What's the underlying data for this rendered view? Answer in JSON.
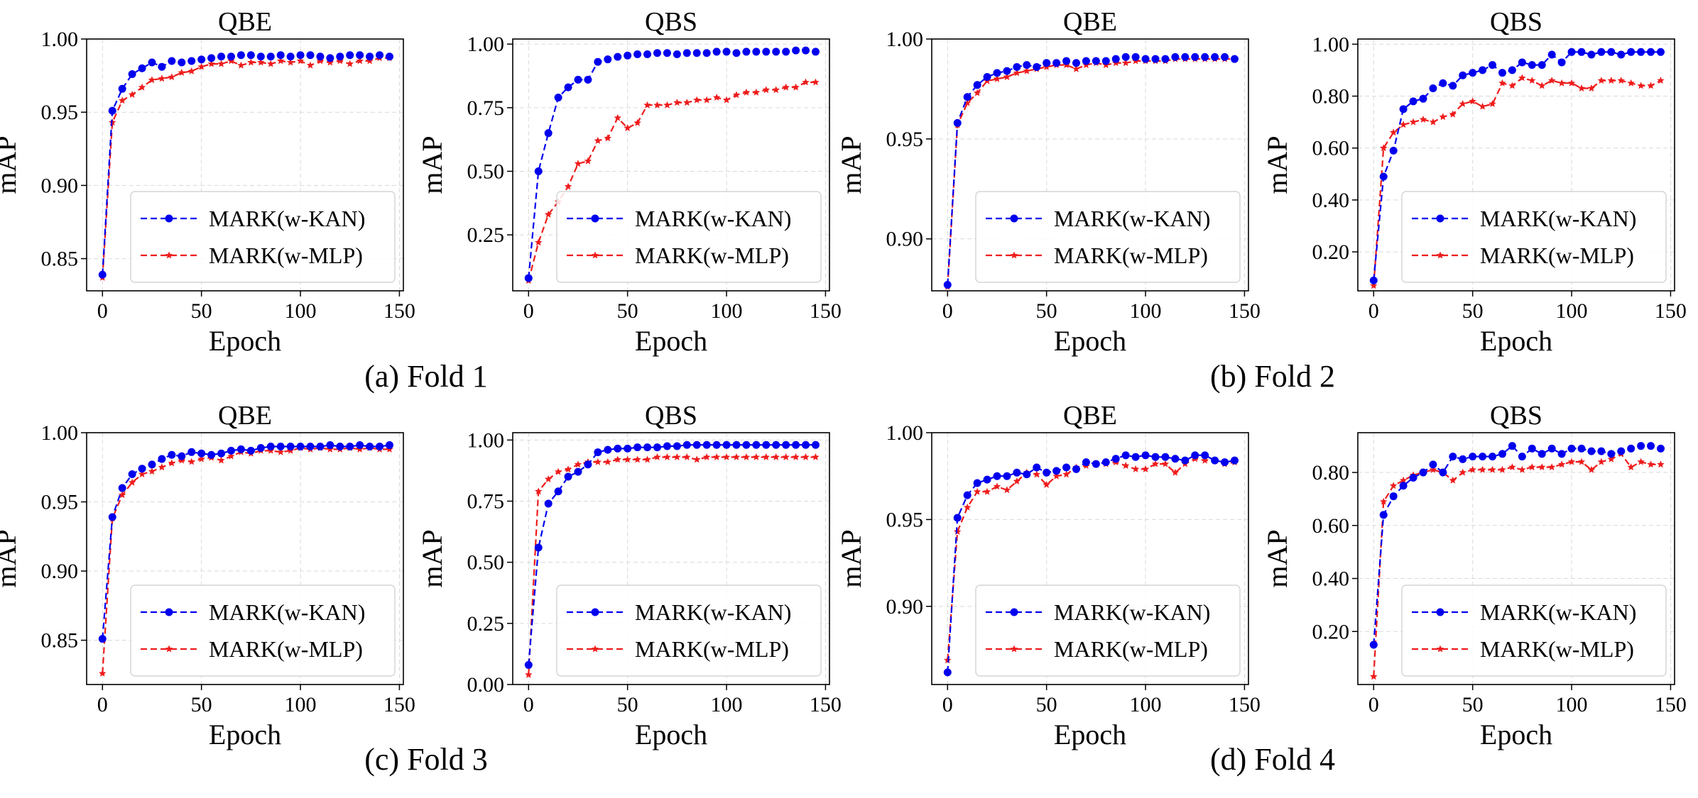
{
  "colors": {
    "kan": "#0000ee",
    "mlp": "#ee1c1c",
    "grid": "#d9d9d9",
    "frame": "#000000"
  },
  "legend": {
    "kan_label": "MARK(w-KAN)",
    "mlp_label": "MARK(w-MLP)",
    "placement": "lower-right"
  },
  "figure": {
    "groups": [
      {
        "caption": "(a) Fold 1"
      },
      {
        "caption": "(b) Fold 2"
      },
      {
        "caption": "(c) Fold 3"
      },
      {
        "caption": "(d) Fold 4"
      }
    ]
  },
  "chart_data": [
    {
      "type": "line",
      "group": 0,
      "title": "QBE",
      "xlabel": "Epoch",
      "ylabel": "mAP",
      "xlim": [
        -8,
        152
      ],
      "ylim": [
        0.828,
        1.0
      ],
      "xticks": [
        0,
        50,
        100,
        150
      ],
      "xtick_labels": [
        "0",
        "50",
        "100",
        "150"
      ],
      "yticks": [
        0.85,
        0.9,
        0.95,
        1.0
      ],
      "ytick_labels": [
        "0.85",
        "0.90",
        "0.95",
        "1.00"
      ],
      "grid": true,
      "legend": "lower-right",
      "x": [
        0,
        5,
        10,
        15,
        20,
        25,
        30,
        35,
        40,
        45,
        50,
        55,
        60,
        65,
        70,
        75,
        80,
        85,
        90,
        95,
        100,
        105,
        110,
        115,
        120,
        125,
        130,
        135,
        140,
        145
      ],
      "series": [
        {
          "name": "MARK(w-KAN)",
          "values": [
            0.839,
            0.951,
            0.966,
            0.976,
            0.98,
            0.984,
            0.981,
            0.985,
            0.984,
            0.985,
            0.986,
            0.987,
            0.988,
            0.988,
            0.989,
            0.989,
            0.988,
            0.988,
            0.989,
            0.988,
            0.989,
            0.989,
            0.988,
            0.987,
            0.988,
            0.989,
            0.989,
            0.988,
            0.989,
            0.988
          ]
        },
        {
          "name": "MARK(w-MLP)",
          "values": [
            0.837,
            0.943,
            0.958,
            0.962,
            0.967,
            0.972,
            0.973,
            0.974,
            0.977,
            0.978,
            0.981,
            0.983,
            0.983,
            0.985,
            0.982,
            0.984,
            0.984,
            0.983,
            0.985,
            0.984,
            0.985,
            0.982,
            0.985,
            0.984,
            0.985,
            0.983,
            0.985,
            0.985,
            0.987,
            0.987
          ]
        }
      ]
    },
    {
      "type": "line",
      "group": 0,
      "title": "QBS",
      "xlabel": "Epoch",
      "ylabel": "mAP",
      "xlim": [
        -8,
        152
      ],
      "ylim": [
        0.03,
        1.02
      ],
      "xticks": [
        0,
        50,
        100,
        150
      ],
      "xtick_labels": [
        "0",
        "50",
        "100",
        "150"
      ],
      "yticks": [
        0.25,
        0.5,
        0.75,
        1.0
      ],
      "ytick_labels": [
        "0.25",
        "0.50",
        "0.75",
        "1.00"
      ],
      "grid": true,
      "legend": "lower-right",
      "x": [
        0,
        5,
        10,
        15,
        20,
        25,
        30,
        35,
        40,
        45,
        50,
        55,
        60,
        65,
        70,
        75,
        80,
        85,
        90,
        95,
        100,
        105,
        110,
        115,
        120,
        125,
        130,
        135,
        140,
        145
      ],
      "series": [
        {
          "name": "MARK(w-KAN)",
          "values": [
            0.08,
            0.5,
            0.65,
            0.79,
            0.83,
            0.86,
            0.86,
            0.93,
            0.94,
            0.95,
            0.955,
            0.96,
            0.96,
            0.965,
            0.965,
            0.96,
            0.965,
            0.965,
            0.965,
            0.97,
            0.97,
            0.965,
            0.97,
            0.97,
            0.97,
            0.97,
            0.97,
            0.975,
            0.975,
            0.97
          ]
        },
        {
          "name": "MARK(w-MLP)",
          "values": [
            0.07,
            0.22,
            0.33,
            0.38,
            0.44,
            0.53,
            0.54,
            0.62,
            0.63,
            0.71,
            0.67,
            0.69,
            0.76,
            0.76,
            0.76,
            0.77,
            0.77,
            0.78,
            0.78,
            0.79,
            0.78,
            0.8,
            0.81,
            0.81,
            0.82,
            0.82,
            0.83,
            0.83,
            0.85,
            0.85
          ]
        }
      ]
    },
    {
      "type": "line",
      "group": 1,
      "title": "QBE",
      "xlabel": "Epoch",
      "ylabel": "mAP",
      "xlim": [
        -8,
        152
      ],
      "ylim": [
        0.874,
        1.0
      ],
      "xticks": [
        0,
        50,
        100,
        150
      ],
      "xtick_labels": [
        "0",
        "50",
        "100",
        "150"
      ],
      "yticks": [
        0.9,
        0.95,
        1.0
      ],
      "ytick_labels": [
        "0.90",
        "0.95",
        "1.00"
      ],
      "grid": true,
      "legend": "lower-right",
      "x": [
        0,
        5,
        10,
        15,
        20,
        25,
        30,
        35,
        40,
        45,
        50,
        55,
        60,
        65,
        70,
        75,
        80,
        85,
        90,
        95,
        100,
        105,
        110,
        115,
        120,
        125,
        130,
        135,
        140,
        145
      ],
      "series": [
        {
          "name": "MARK(w-KAN)",
          "values": [
            0.877,
            0.958,
            0.971,
            0.977,
            0.981,
            0.983,
            0.984,
            0.986,
            0.987,
            0.986,
            0.988,
            0.988,
            0.989,
            0.988,
            0.989,
            0.989,
            0.989,
            0.99,
            0.991,
            0.991,
            0.99,
            0.99,
            0.99,
            0.991,
            0.991,
            0.991,
            0.991,
            0.991,
            0.991,
            0.99
          ]
        },
        {
          "name": "MARK(w-MLP)",
          "values": [
            0.876,
            0.957,
            0.968,
            0.973,
            0.979,
            0.98,
            0.981,
            0.983,
            0.984,
            0.985,
            0.986,
            0.987,
            0.987,
            0.985,
            0.987,
            0.988,
            0.987,
            0.988,
            0.988,
            0.989,
            0.989,
            0.989,
            0.989,
            0.99,
            0.99,
            0.99,
            0.99,
            0.99,
            0.99,
            0.99
          ]
        }
      ]
    },
    {
      "type": "line",
      "group": 1,
      "title": "QBS",
      "xlabel": "Epoch",
      "ylabel": "mAP",
      "xlim": [
        -8,
        152
      ],
      "ylim": [
        0.05,
        1.02
      ],
      "xticks": [
        0,
        50,
        100,
        150
      ],
      "xtick_labels": [
        "0",
        "50",
        "100",
        "150"
      ],
      "yticks": [
        0.2,
        0.4,
        0.6,
        0.8,
        1.0
      ],
      "ytick_labels": [
        "0.20",
        "0.40",
        "0.60",
        "0.80",
        "1.00"
      ],
      "grid": true,
      "legend": "lower-right",
      "x": [
        0,
        5,
        10,
        15,
        20,
        25,
        30,
        35,
        40,
        45,
        50,
        55,
        60,
        65,
        70,
        75,
        80,
        85,
        90,
        95,
        100,
        105,
        110,
        115,
        120,
        125,
        130,
        135,
        140,
        145
      ],
      "series": [
        {
          "name": "MARK(w-KAN)",
          "values": [
            0.09,
            0.49,
            0.59,
            0.75,
            0.78,
            0.79,
            0.83,
            0.85,
            0.84,
            0.88,
            0.89,
            0.9,
            0.92,
            0.89,
            0.9,
            0.93,
            0.92,
            0.92,
            0.96,
            0.93,
            0.97,
            0.97,
            0.96,
            0.97,
            0.97,
            0.96,
            0.97,
            0.97,
            0.97,
            0.97
          ]
        },
        {
          "name": "MARK(w-MLP)",
          "values": [
            0.07,
            0.6,
            0.66,
            0.69,
            0.7,
            0.71,
            0.7,
            0.72,
            0.73,
            0.77,
            0.78,
            0.76,
            0.77,
            0.85,
            0.84,
            0.87,
            0.86,
            0.84,
            0.86,
            0.85,
            0.85,
            0.83,
            0.83,
            0.86,
            0.86,
            0.86,
            0.85,
            0.84,
            0.84,
            0.86
          ]
        }
      ]
    },
    {
      "type": "line",
      "group": 2,
      "title": "QBE",
      "xlabel": "Epoch",
      "ylabel": "mAP",
      "xlim": [
        -8,
        152
      ],
      "ylim": [
        0.818,
        1.0
      ],
      "xticks": [
        0,
        50,
        100,
        150
      ],
      "xtick_labels": [
        "0",
        "50",
        "100",
        "150"
      ],
      "yticks": [
        0.85,
        0.9,
        0.95,
        1.0
      ],
      "ytick_labels": [
        "0.85",
        "0.90",
        "0.95",
        "1.00"
      ],
      "grid": true,
      "legend": "lower-right",
      "x": [
        0,
        5,
        10,
        15,
        20,
        25,
        30,
        35,
        40,
        45,
        50,
        55,
        60,
        65,
        70,
        75,
        80,
        85,
        90,
        95,
        100,
        105,
        110,
        115,
        120,
        125,
        130,
        135,
        140,
        145
      ],
      "series": [
        {
          "name": "MARK(w-KAN)",
          "values": [
            0.851,
            0.939,
            0.96,
            0.97,
            0.974,
            0.977,
            0.981,
            0.984,
            0.983,
            0.986,
            0.985,
            0.984,
            0.985,
            0.987,
            0.988,
            0.987,
            0.989,
            0.99,
            0.99,
            0.99,
            0.99,
            0.99,
            0.99,
            0.991,
            0.99,
            0.99,
            0.991,
            0.99,
            0.99,
            0.991
          ]
        },
        {
          "name": "MARK(w-MLP)",
          "values": [
            0.826,
            0.938,
            0.955,
            0.964,
            0.97,
            0.972,
            0.975,
            0.978,
            0.98,
            0.979,
            0.981,
            0.982,
            0.98,
            0.983,
            0.986,
            0.985,
            0.987,
            0.987,
            0.986,
            0.987,
            0.989,
            0.988,
            0.989,
            0.988,
            0.988,
            0.989,
            0.988,
            0.989,
            0.988,
            0.988
          ]
        }
      ]
    },
    {
      "type": "line",
      "group": 2,
      "title": "QBS",
      "xlabel": "Epoch",
      "ylabel": "mAP",
      "xlim": [
        -8,
        152
      ],
      "ylim": [
        0.0,
        1.03
      ],
      "xticks": [
        0,
        50,
        100,
        150
      ],
      "xtick_labels": [
        "0",
        "50",
        "100",
        "150"
      ],
      "yticks": [
        0.0,
        0.25,
        0.5,
        0.75,
        1.0
      ],
      "ytick_labels": [
        "0.00",
        "0.25",
        "0.50",
        "0.75",
        "1.00"
      ],
      "grid": true,
      "legend": "lower-right",
      "x": [
        0,
        5,
        10,
        15,
        20,
        25,
        30,
        35,
        40,
        45,
        50,
        55,
        60,
        65,
        70,
        75,
        80,
        85,
        90,
        95,
        100,
        105,
        110,
        115,
        120,
        125,
        130,
        135,
        140,
        145
      ],
      "series": [
        {
          "name": "MARK(w-KAN)",
          "values": [
            0.08,
            0.56,
            0.74,
            0.79,
            0.85,
            0.87,
            0.9,
            0.95,
            0.96,
            0.965,
            0.965,
            0.97,
            0.97,
            0.97,
            0.975,
            0.975,
            0.98,
            0.98,
            0.98,
            0.98,
            0.98,
            0.98,
            0.98,
            0.98,
            0.98,
            0.98,
            0.98,
            0.98,
            0.98,
            0.98
          ]
        },
        {
          "name": "MARK(w-MLP)",
          "values": [
            0.04,
            0.79,
            0.84,
            0.87,
            0.88,
            0.9,
            0.91,
            0.91,
            0.91,
            0.92,
            0.92,
            0.92,
            0.92,
            0.93,
            0.93,
            0.93,
            0.93,
            0.92,
            0.93,
            0.93,
            0.93,
            0.93,
            0.93,
            0.93,
            0.93,
            0.93,
            0.93,
            0.93,
            0.93,
            0.93
          ]
        }
      ]
    },
    {
      "type": "line",
      "group": 3,
      "title": "QBE",
      "xlabel": "Epoch",
      "ylabel": "mAP",
      "xlim": [
        -8,
        152
      ],
      "ylim": [
        0.855,
        1.0
      ],
      "xticks": [
        0,
        50,
        100,
        150
      ],
      "xtick_labels": [
        "0",
        "50",
        "100",
        "150"
      ],
      "yticks": [
        0.9,
        0.95,
        1.0
      ],
      "ytick_labels": [
        "0.90",
        "0.95",
        "1.00"
      ],
      "grid": true,
      "legend": "lower-right",
      "x": [
        0,
        5,
        10,
        15,
        20,
        25,
        30,
        35,
        40,
        45,
        50,
        55,
        60,
        65,
        70,
        75,
        80,
        85,
        90,
        95,
        100,
        105,
        110,
        115,
        120,
        125,
        130,
        135,
        140,
        145
      ],
      "series": [
        {
          "name": "MARK(w-KAN)",
          "values": [
            0.862,
            0.951,
            0.964,
            0.971,
            0.973,
            0.975,
            0.975,
            0.977,
            0.976,
            0.98,
            0.977,
            0.978,
            0.98,
            0.979,
            0.983,
            0.982,
            0.983,
            0.985,
            0.987,
            0.986,
            0.987,
            0.986,
            0.986,
            0.985,
            0.984,
            0.987,
            0.987,
            0.984,
            0.983,
            0.984
          ]
        },
        {
          "name": "MARK(w-MLP)",
          "values": [
            0.869,
            0.943,
            0.957,
            0.966,
            0.966,
            0.969,
            0.967,
            0.972,
            0.977,
            0.976,
            0.97,
            0.975,
            0.976,
            0.98,
            0.981,
            0.982,
            0.982,
            0.983,
            0.981,
            0.979,
            0.979,
            0.982,
            0.982,
            0.977,
            0.982,
            0.985,
            0.984,
            0.984,
            0.982,
            0.983
          ]
        }
      ]
    },
    {
      "type": "line",
      "group": 3,
      "title": "QBS",
      "xlabel": "Epoch",
      "ylabel": "mAP",
      "xlim": [
        -8,
        152
      ],
      "ylim": [
        0.0,
        0.95
      ],
      "xticks": [
        0,
        50,
        100,
        150
      ],
      "xtick_labels": [
        "0",
        "50",
        "100",
        "150"
      ],
      "yticks": [
        0.2,
        0.4,
        0.6,
        0.8
      ],
      "ytick_labels": [
        "0.20",
        "0.40",
        "0.60",
        "0.80"
      ],
      "grid": true,
      "legend": "lower-right",
      "x": [
        0,
        5,
        10,
        15,
        20,
        25,
        30,
        35,
        40,
        45,
        50,
        55,
        60,
        65,
        70,
        75,
        80,
        85,
        90,
        95,
        100,
        105,
        110,
        115,
        120,
        125,
        130,
        135,
        140,
        145
      ],
      "series": [
        {
          "name": "MARK(w-KAN)",
          "values": [
            0.15,
            0.64,
            0.71,
            0.75,
            0.78,
            0.8,
            0.83,
            0.8,
            0.86,
            0.85,
            0.86,
            0.86,
            0.86,
            0.87,
            0.9,
            0.86,
            0.89,
            0.87,
            0.89,
            0.87,
            0.89,
            0.89,
            0.88,
            0.88,
            0.87,
            0.88,
            0.89,
            0.9,
            0.9,
            0.89
          ]
        },
        {
          "name": "MARK(w-MLP)",
          "values": [
            0.03,
            0.69,
            0.75,
            0.77,
            0.79,
            0.8,
            0.81,
            0.8,
            0.77,
            0.8,
            0.81,
            0.81,
            0.81,
            0.81,
            0.82,
            0.81,
            0.82,
            0.82,
            0.82,
            0.83,
            0.84,
            0.84,
            0.81,
            0.84,
            0.85,
            0.87,
            0.82,
            0.84,
            0.83,
            0.83
          ]
        }
      ]
    }
  ]
}
